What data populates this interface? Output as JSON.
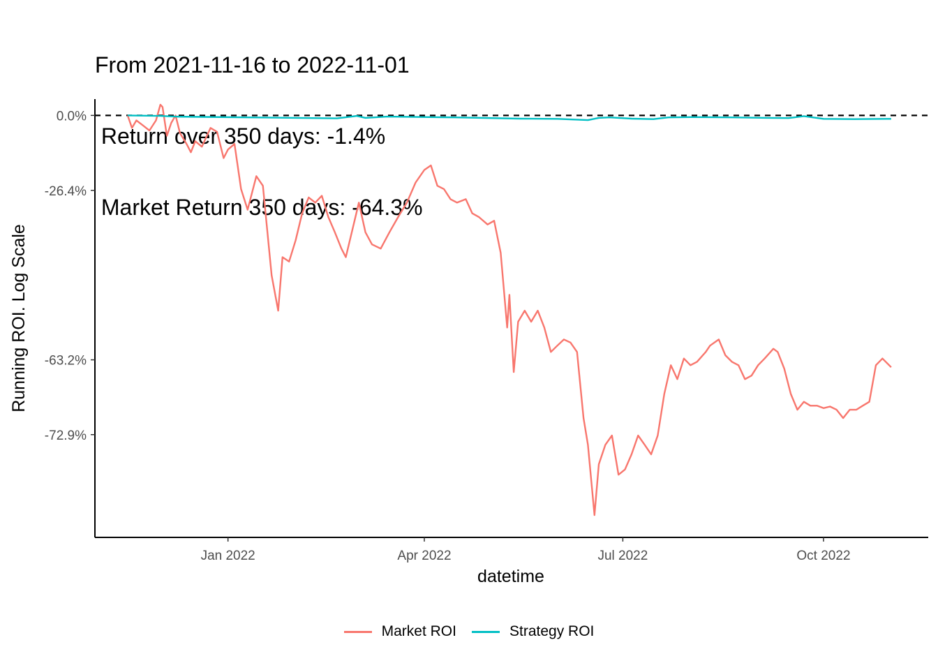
{
  "chart_data": {
    "type": "line",
    "title_lines": [
      "From 2021-11-16 to 2022-11-01",
      " Return over 350 days: -1.4%",
      " Market Return 350 days: -64.3%"
    ],
    "xlabel": "datetime",
    "ylabel": "Running ROI. Log Scale",
    "log_scale": true,
    "x_ticks": [
      {
        "date": "2022-01-01",
        "label": "Jan 2022"
      },
      {
        "date": "2022-04-01",
        "label": "Apr 2022"
      },
      {
        "date": "2022-07-01",
        "label": "Jul 2022"
      },
      {
        "date": "2022-10-01",
        "label": "Oct 2022"
      }
    ],
    "y_ticks": [
      {
        "roi": 0.0,
        "label": "0.0%"
      },
      {
        "roi": -26.4,
        "label": "-26.4%"
      },
      {
        "roi": -63.2,
        "label": "-63.2%"
      },
      {
        "roi": -72.9,
        "label": "-72.9%"
      }
    ],
    "xlim": [
      "2021-11-01",
      "2022-11-18"
    ],
    "ylim": [
      -82.2,
      6.9
    ],
    "reference_line": {
      "roi": 0.0,
      "style": "dashed"
    },
    "grid": false,
    "legend_position": "bottom",
    "series": [
      {
        "name": "Market ROI",
        "color": "#F8766D",
        "points": [
          [
            "2021-11-16",
            0.0
          ],
          [
            "2021-11-18",
            -5.0
          ],
          [
            "2021-11-20",
            -2.0
          ],
          [
            "2021-11-23",
            -4.0
          ],
          [
            "2021-11-26",
            -6.0
          ],
          [
            "2021-11-29",
            -2.0
          ],
          [
            "2021-12-01",
            4.5
          ],
          [
            "2021-12-02",
            3.5
          ],
          [
            "2021-12-04",
            -8.0
          ],
          [
            "2021-12-06",
            -3.0
          ],
          [
            "2021-12-08",
            0.0
          ],
          [
            "2021-12-10",
            -7.0
          ],
          [
            "2021-12-13",
            -11.0
          ],
          [
            "2021-12-15",
            -14.0
          ],
          [
            "2021-12-17",
            -10.0
          ],
          [
            "2021-12-20",
            -12.0
          ],
          [
            "2021-12-24",
            -5.0
          ],
          [
            "2021-12-27",
            -6.5
          ],
          [
            "2021-12-30",
            -16.0
          ],
          [
            "2022-01-01",
            -13.0
          ],
          [
            "2022-01-04",
            -11.0
          ],
          [
            "2022-01-07",
            -26.0
          ],
          [
            "2022-01-10",
            -32.0
          ],
          [
            "2022-01-14",
            -22.0
          ],
          [
            "2022-01-17",
            -25.0
          ],
          [
            "2022-01-21",
            -48.0
          ],
          [
            "2022-01-24",
            -55.0
          ],
          [
            "2022-01-26",
            -44.0
          ],
          [
            "2022-01-29",
            -45.0
          ],
          [
            "2022-02-01",
            -40.0
          ],
          [
            "2022-02-04",
            -33.0
          ],
          [
            "2022-02-07",
            -28.5
          ],
          [
            "2022-02-10",
            -30.0
          ],
          [
            "2022-02-13",
            -28.0
          ],
          [
            "2022-02-16",
            -34.0
          ],
          [
            "2022-02-19",
            -38.0
          ],
          [
            "2022-02-22",
            -42.0
          ],
          [
            "2022-02-24",
            -44.0
          ],
          [
            "2022-02-28",
            -35.0
          ],
          [
            "2022-03-02",
            -30.0
          ],
          [
            "2022-03-05",
            -38.0
          ],
          [
            "2022-03-08",
            -41.0
          ],
          [
            "2022-03-12",
            -42.0
          ],
          [
            "2022-03-16",
            -38.0
          ],
          [
            "2022-03-20",
            -34.0
          ],
          [
            "2022-03-24",
            -30.0
          ],
          [
            "2022-03-28",
            -24.0
          ],
          [
            "2022-04-01",
            -20.0
          ],
          [
            "2022-04-04",
            -18.5
          ],
          [
            "2022-04-07",
            -25.0
          ],
          [
            "2022-04-10",
            -26.0
          ],
          [
            "2022-04-13",
            -29.0
          ],
          [
            "2022-04-16",
            -30.0
          ],
          [
            "2022-04-20",
            -29.0
          ],
          [
            "2022-04-23",
            -33.0
          ],
          [
            "2022-04-26",
            -34.0
          ],
          [
            "2022-04-30",
            -36.0
          ],
          [
            "2022-05-03",
            -35.0
          ],
          [
            "2022-05-06",
            -43.0
          ],
          [
            "2022-05-09",
            -58.0
          ],
          [
            "2022-05-10",
            -52.0
          ],
          [
            "2022-05-12",
            -65.0
          ],
          [
            "2022-05-14",
            -57.0
          ],
          [
            "2022-05-17",
            -55.0
          ],
          [
            "2022-05-20",
            -57.0
          ],
          [
            "2022-05-23",
            -55.0
          ],
          [
            "2022-05-26",
            -58.0
          ],
          [
            "2022-05-29",
            -62.0
          ],
          [
            "2022-06-01",
            -61.0
          ],
          [
            "2022-06-04",
            -60.0
          ],
          [
            "2022-06-07",
            -60.5
          ],
          [
            "2022-06-10",
            -62.0
          ],
          [
            "2022-06-13",
            -71.0
          ],
          [
            "2022-06-15",
            -74.0
          ],
          [
            "2022-06-18",
            -80.5
          ],
          [
            "2022-06-20",
            -76.0
          ],
          [
            "2022-06-23",
            -74.0
          ],
          [
            "2022-06-26",
            -73.0
          ],
          [
            "2022-06-29",
            -77.0
          ],
          [
            "2022-07-02",
            -76.5
          ],
          [
            "2022-07-05",
            -75.0
          ],
          [
            "2022-07-08",
            -73.0
          ],
          [
            "2022-07-11",
            -74.0
          ],
          [
            "2022-07-14",
            -75.0
          ],
          [
            "2022-07-17",
            -73.0
          ],
          [
            "2022-07-20",
            -68.0
          ],
          [
            "2022-07-23",
            -64.0
          ],
          [
            "2022-07-26",
            -66.0
          ],
          [
            "2022-07-29",
            -63.0
          ],
          [
            "2022-08-01",
            -64.0
          ],
          [
            "2022-08-04",
            -63.5
          ],
          [
            "2022-08-08",
            -62.0
          ],
          [
            "2022-08-10",
            -61.0
          ],
          [
            "2022-08-14",
            -60.0
          ],
          [
            "2022-08-17",
            -62.5
          ],
          [
            "2022-08-20",
            -63.5
          ],
          [
            "2022-08-23",
            -64.0
          ],
          [
            "2022-08-26",
            -66.0
          ],
          [
            "2022-08-29",
            -65.5
          ],
          [
            "2022-09-01",
            -64.0
          ],
          [
            "2022-09-04",
            -63.0
          ],
          [
            "2022-09-08",
            -61.5
          ],
          [
            "2022-09-10",
            -62.0
          ],
          [
            "2022-09-13",
            -64.5
          ],
          [
            "2022-09-16",
            -68.0
          ],
          [
            "2022-09-19",
            -70.0
          ],
          [
            "2022-09-22",
            -69.0
          ],
          [
            "2022-09-25",
            -69.5
          ],
          [
            "2022-09-28",
            -69.5
          ],
          [
            "2022-10-01",
            -69.8
          ],
          [
            "2022-10-04",
            -69.6
          ],
          [
            "2022-10-07",
            -70.0
          ],
          [
            "2022-10-10",
            -71.0
          ],
          [
            "2022-10-13",
            -70.0
          ],
          [
            "2022-10-16",
            -70.0
          ],
          [
            "2022-10-19",
            -69.5
          ],
          [
            "2022-10-22",
            -69.0
          ],
          [
            "2022-10-25",
            -64.0
          ],
          [
            "2022-10-28",
            -63.0
          ],
          [
            "2022-11-01",
            -64.3
          ]
        ]
      },
      {
        "name": "Strategy ROI",
        "color": "#00BFC4",
        "points": [
          [
            "2021-11-16",
            0.0
          ],
          [
            "2021-12-01",
            -0.2
          ],
          [
            "2021-12-08",
            -0.5
          ],
          [
            "2021-12-20",
            -0.6
          ],
          [
            "2022-01-10",
            -0.8
          ],
          [
            "2022-02-01",
            -1.0
          ],
          [
            "2022-02-20",
            -1.2
          ],
          [
            "2022-03-01",
            -0.2
          ],
          [
            "2022-03-05",
            -1.0
          ],
          [
            "2022-03-15",
            -0.5
          ],
          [
            "2022-04-15",
            -0.8
          ],
          [
            "2022-05-15",
            -1.3
          ],
          [
            "2022-06-01",
            -1.4
          ],
          [
            "2022-06-15",
            -1.9
          ],
          [
            "2022-06-20",
            -1.0
          ],
          [
            "2022-06-25",
            -0.8
          ],
          [
            "2022-07-05",
            -1.3
          ],
          [
            "2022-07-15",
            -1.5
          ],
          [
            "2022-07-22",
            -0.8
          ],
          [
            "2022-08-01",
            -0.7
          ],
          [
            "2022-08-20",
            -0.8
          ],
          [
            "2022-09-05",
            -1.0
          ],
          [
            "2022-09-15",
            -1.1
          ],
          [
            "2022-09-22",
            -0.3
          ],
          [
            "2022-10-01",
            -1.4
          ],
          [
            "2022-10-15",
            -1.5
          ],
          [
            "2022-11-01",
            -1.4
          ]
        ]
      }
    ]
  }
}
